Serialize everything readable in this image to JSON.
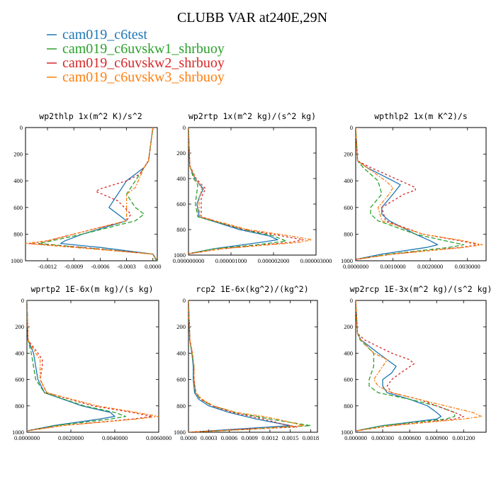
{
  "figure_title": "CLUBB VAR at240E,29N",
  "legend": [
    {
      "name": "cam019_c6test",
      "color": "#1f77b4"
    },
    {
      "name": "cam019_c6uvskw1_shrbuoy",
      "color": "#2ca02c"
    },
    {
      "name": "cam019_c6uvskw2_shrbuoy",
      "color": "#d62728"
    },
    {
      "name": "cam019_c6uvskw3_shrbuoy",
      "color": "#ff7f0e"
    }
  ],
  "chart_data": [
    {
      "type": "line",
      "title": "wp2thlp  1x(m^2 K)/s^2",
      "xlim": [
        -0.00145,
        5e-05
      ],
      "ylim": [
        1000,
        0
      ],
      "y_ticks": [
        0,
        200,
        400,
        600,
        800,
        1000
      ],
      "x_ticks": [
        -0.0012,
        -0.0009,
        -0.0006,
        -0.0003,
        0.0
      ],
      "x_tick_labels": [
        "-0.0012",
        "-0.0009",
        "-0.0006",
        "-0.0003",
        "0.0000"
      ],
      "series": [
        {
          "y": [
            0,
            250,
            300,
            400,
            500,
            600,
            700,
            800,
            850,
            870,
            900,
            950,
            1000
          ],
          "x": [
            0,
            -5e-05,
            -0.0001,
            -0.0003,
            -0.0004,
            -0.0005,
            -0.0003,
            -0.0008,
            -0.001,
            -0.00105,
            -0.0006,
            0.0,
            4e-05
          ]
        },
        {
          "y": [
            0,
            250,
            300,
            400,
            500,
            600,
            650,
            700,
            800,
            850,
            870,
            900,
            950,
            1000
          ],
          "x": [
            0,
            -5e-05,
            -0.0001,
            -0.0002,
            -0.0003,
            -0.0002,
            -0.0001,
            -0.0002,
            -0.0008,
            -0.00115,
            -0.0013,
            -0.0008,
            0.0,
            5e-05
          ]
        },
        {
          "y": [
            0,
            250,
            350,
            400,
            460,
            480,
            550,
            650,
            700,
            800,
            850,
            870,
            900,
            950,
            1000
          ],
          "x": [
            0,
            -5e-05,
            -0.00015,
            -0.0003,
            -0.0006,
            -0.00065,
            -0.0004,
            -0.00025,
            -0.0003,
            -0.0009,
            -0.0012,
            -0.0014,
            -0.0008,
            0.0,
            5e-05
          ]
        },
        {
          "y": [
            0,
            250,
            300,
            450,
            500,
            600,
            700,
            800,
            850,
            870,
            900,
            950,
            1000
          ],
          "x": [
            0,
            -5e-05,
            -0.0001,
            -0.0002,
            -0.0003,
            -0.0003,
            -0.0003,
            -0.0009,
            -0.0012,
            -0.00145,
            -0.0009,
            0.0,
            5e-05
          ]
        }
      ]
    },
    {
      "type": "line",
      "title": "wp2rtp  1x(m^2 kg)/(s^2 kg)",
      "xlim": [
        0,
        3e-06
      ],
      "ylim": [
        1000,
        0
      ],
      "y_ticks": [
        0,
        200,
        400,
        600,
        800,
        1000
      ],
      "x_ticks": [
        0,
        1e-06,
        2e-06,
        3e-06
      ],
      "x_tick_labels": [
        "0.000000000",
        "0.000001000",
        "0.000002000",
        "0.000003000"
      ],
      "series": [
        {
          "y": [
            0,
            300,
            400,
            480,
            550,
            600,
            700,
            800,
            850,
            880,
            900,
            950,
            990
          ],
          "x": [
            0,
            3e-08,
            1.5e-07,
            3.5e-07,
            2.5e-07,
            2e-07,
            2.5e-07,
            1.2e-06,
            1.9e-06,
            2.1e-06,
            1.7e-06,
            6e-07,
            0
          ]
        },
        {
          "y": [
            0,
            300,
            400,
            450,
            550,
            600,
            700,
            800,
            850,
            890,
            920,
            950,
            990
          ],
          "x": [
            0,
            3e-08,
            1.2e-07,
            2.2e-07,
            1.8e-07,
            1.6e-07,
            2.2e-07,
            1.3e-06,
            2e-06,
            2.3e-06,
            1.6e-06,
            6e-07,
            0
          ]
        },
        {
          "y": [
            0,
            300,
            400,
            480,
            550,
            650,
            700,
            800,
            850,
            880,
            900,
            950,
            990
          ],
          "x": [
            0,
            3e-08,
            1.8e-07,
            4e-07,
            3e-07,
            3e-07,
            3e-07,
            1.3e-06,
            2.2e-06,
            2.7e-06,
            2.4e-06,
            8e-07,
            0
          ]
        },
        {
          "y": [
            0,
            300,
            400,
            480,
            550,
            650,
            700,
            800,
            850,
            880,
            900,
            950,
            990
          ],
          "x": [
            0,
            3e-08,
            1.6e-07,
            3.2e-07,
            2.5e-07,
            2.5e-07,
            2.8e-07,
            1.4e-06,
            2.4e-06,
            2.9e-06,
            2.6e-06,
            8e-07,
            0
          ]
        }
      ]
    },
    {
      "type": "line",
      "title": "wpthlp2  1x(m K^2)/s",
      "xlim": [
        0,
        0.0035
      ],
      "ylim": [
        1000,
        0
      ],
      "y_ticks": [
        0,
        200,
        400,
        600,
        800,
        1000
      ],
      "x_ticks": [
        0,
        0.001,
        0.002,
        0.003
      ],
      "x_tick_labels": [
        "0.0000000",
        "0.0010000",
        "0.0020000",
        "0.0030000"
      ],
      "series": [
        {
          "y": [
            0,
            250,
            300,
            400,
            430,
            500,
            600,
            650,
            700,
            800,
            850,
            880,
            900,
            950,
            990
          ],
          "x": [
            0,
            5e-05,
            0.0003,
            0.001,
            0.0012,
            0.001,
            0.0007,
            0.0007,
            0.0009,
            0.0016,
            0.002,
            0.0022,
            0.0019,
            0.0007,
            0
          ]
        },
        {
          "y": [
            0,
            250,
            300,
            400,
            500,
            600,
            650,
            700,
            800,
            850,
            880,
            900,
            950,
            990
          ],
          "x": [
            0,
            5e-05,
            0.0002,
            0.0006,
            0.0007,
            0.0004,
            0.0004,
            0.0006,
            0.0016,
            0.0024,
            0.0029,
            0.0025,
            0.0009,
            0
          ]
        },
        {
          "y": [
            0,
            250,
            300,
            400,
            450,
            470,
            500,
            600,
            700,
            800,
            850,
            880,
            900,
            950,
            990
          ],
          "x": [
            0,
            5e-05,
            0.0004,
            0.0012,
            0.0016,
            0.0016,
            0.0013,
            0.0007,
            0.0008,
            0.0018,
            0.0028,
            0.0033,
            0.0028,
            0.001,
            0
          ]
        },
        {
          "y": [
            0,
            250,
            300,
            400,
            450,
            500,
            600,
            700,
            800,
            850,
            880,
            900,
            950,
            990
          ],
          "x": [
            0,
            5e-05,
            0.0003,
            0.0008,
            0.001,
            0.0009,
            0.0006,
            0.0007,
            0.0018,
            0.0029,
            0.0034,
            0.0029,
            0.001,
            0
          ]
        }
      ]
    },
    {
      "type": "line",
      "title": "wprtp2  1E-6x(m kg)/(s kg)",
      "xlim": [
        0,
        0.006
      ],
      "ylim": [
        1000,
        0
      ],
      "y_ticks": [
        0,
        200,
        400,
        600,
        800,
        1000
      ],
      "x_ticks": [
        0,
        0.002,
        0.004,
        0.006
      ],
      "x_tick_labels": [
        "0.0000000",
        "0.0020000",
        "0.0040000",
        "0.0060000"
      ],
      "series": [
        {
          "y": [
            0,
            300,
            400,
            500,
            600,
            700,
            800,
            850,
            880,
            900,
            950,
            990
          ],
          "x": [
            0,
            5e-05,
            0.0003,
            0.0004,
            0.0005,
            0.0008,
            0.0025,
            0.0038,
            0.004,
            0.0033,
            0.0012,
            0
          ]
        },
        {
          "y": [
            0,
            300,
            400,
            500,
            600,
            700,
            800,
            850,
            880,
            900,
            950,
            990
          ],
          "x": [
            0,
            5e-05,
            0.0002,
            0.0003,
            0.0004,
            0.0008,
            0.0026,
            0.004,
            0.0045,
            0.0038,
            0.0013,
            0
          ]
        },
        {
          "y": [
            0,
            300,
            400,
            450,
            500,
            600,
            700,
            800,
            850,
            880,
            900,
            950,
            990
          ],
          "x": [
            0,
            5e-05,
            0.0005,
            0.0007,
            0.0007,
            0.0006,
            0.0009,
            0.003,
            0.0048,
            0.0057,
            0.0048,
            0.0016,
            0
          ]
        },
        {
          "y": [
            0,
            300,
            400,
            450,
            500,
            600,
            700,
            800,
            850,
            880,
            900,
            950,
            990
          ],
          "x": [
            0,
            5e-05,
            0.0004,
            0.0006,
            0.0006,
            0.0006,
            0.0009,
            0.0032,
            0.005,
            0.006,
            0.005,
            0.0016,
            0
          ]
        }
      ]
    },
    {
      "type": "line",
      "title": "rcp2  1E-6x(kg^2)/(kg^2)",
      "xlim": [
        0,
        0.0019
      ],
      "ylim": [
        1000,
        0
      ],
      "y_ticks": [
        0,
        200,
        400,
        600,
        800,
        1000
      ],
      "x_ticks": [
        0,
        0.0003,
        0.0006,
        0.0009,
        0.0012,
        0.0015,
        0.0018
      ],
      "x_tick_labels": [
        "0.0000",
        "0.0003",
        "0.0006",
        "0.0009",
        "0.0012",
        "0.0015",
        "0.0018"
      ],
      "series": [
        {
          "y": [
            0,
            300,
            400,
            500,
            600,
            700,
            750,
            800,
            850,
            900,
            950,
            980,
            1000
          ],
          "x": [
            0,
            2e-05,
            5e-05,
            7e-05,
            7e-05,
            9e-05,
            0.00015,
            0.0003,
            0.0006,
            0.001,
            0.0015,
            0.0006,
            0
          ]
        },
        {
          "y": [
            0,
            300,
            400,
            500,
            600,
            700,
            750,
            800,
            850,
            900,
            950,
            980,
            1000
          ],
          "x": [
            0,
            2e-05,
            5e-05,
            8e-05,
            8e-05,
            0.0001,
            0.00018,
            0.00035,
            0.0007,
            0.0012,
            0.0018,
            0.0008,
            0
          ]
        },
        {
          "y": [
            0,
            300,
            400,
            500,
            600,
            700,
            750,
            800,
            850,
            900,
            940,
            960,
            980,
            1000
          ],
          "x": [
            0,
            2e-05,
            6e-05,
            8e-05,
            8e-05,
            0.00011,
            0.00018,
            0.00035,
            0.00065,
            0.0011,
            0.0014,
            0.0016,
            0.0007,
            0
          ]
        },
        {
          "y": [
            0,
            300,
            400,
            500,
            600,
            700,
            750,
            800,
            850,
            880,
            900,
            950,
            980,
            1000
          ],
          "x": [
            0,
            2e-05,
            6e-05,
            8e-05,
            8e-05,
            0.00011,
            0.0002,
            0.00037,
            0.0007,
            0.0011,
            0.0013,
            0.0017,
            0.0008,
            0
          ]
        }
      ]
    },
    {
      "type": "line",
      "title": "wp2rcp  1E-3x(m^2 kg)/(s^2 kg)",
      "xlim": [
        0,
        0.00145
      ],
      "ylim": [
        1000,
        0
      ],
      "y_ticks": [
        0,
        200,
        400,
        600,
        800,
        1000
      ],
      "x_ticks": [
        0,
        0.0003,
        0.0006,
        0.0009,
        0.0012
      ],
      "x_tick_labels": [
        "0.000000",
        "0.000300",
        "0.000600",
        "0.000900",
        "0.001200"
      ],
      "series": [
        {
          "y": [
            0,
            250,
            300,
            400,
            500,
            550,
            600,
            650,
            700,
            750,
            800,
            850,
            880,
            900,
            950,
            990
          ],
          "x": [
            0,
            2e-05,
            6e-05,
            0.00025,
            0.00045,
            0.0004,
            0.0003,
            0.0003,
            0.00035,
            0.0006,
            0.0008,
            0.0009,
            0.00095,
            0.0009,
            0.0003,
            0
          ]
        },
        {
          "y": [
            0,
            250,
            300,
            400,
            500,
            600,
            650,
            700,
            750,
            800,
            850,
            880,
            900,
            950,
            990
          ],
          "x": [
            0,
            2e-05,
            5e-05,
            0.0002,
            0.0002,
            0.00015,
            0.00015,
            0.00025,
            0.0006,
            0.0009,
            0.0011,
            0.0011,
            0.001,
            0.0003,
            0
          ]
        },
        {
          "y": [
            0,
            250,
            300,
            400,
            450,
            480,
            550,
            600,
            650,
            700,
            750,
            800,
            850,
            880,
            900,
            950,
            990
          ],
          "x": [
            0,
            2e-05,
            0.0001,
            0.0004,
            0.0006,
            0.00065,
            0.0005,
            0.0004,
            0.00035,
            0.0004,
            0.0007,
            0.0009,
            0.0011,
            0.0012,
            0.0011,
            0.0004,
            0
          ]
        },
        {
          "y": [
            0,
            250,
            300,
            400,
            450,
            500,
            600,
            650,
            700,
            750,
            800,
            850,
            880,
            900,
            950,
            990
          ],
          "x": [
            0,
            2e-05,
            6e-05,
            0.0002,
            0.00035,
            0.0003,
            0.0002,
            0.00025,
            0.0004,
            0.0007,
            0.001,
            0.0013,
            0.0014,
            0.0012,
            0.0004,
            0
          ]
        }
      ]
    }
  ]
}
